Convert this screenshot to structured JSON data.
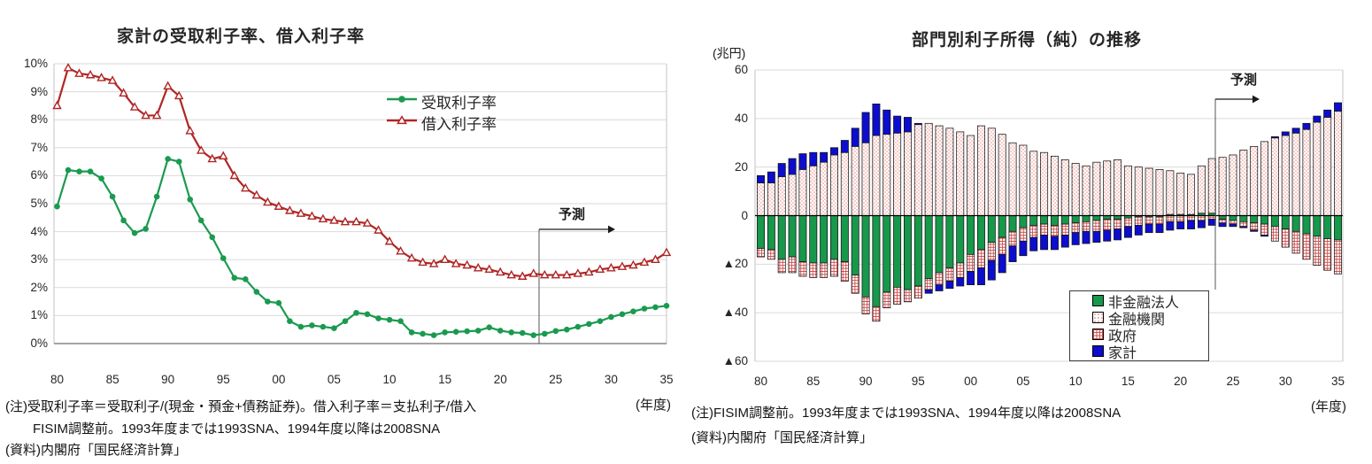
{
  "chart_data": [
    {
      "type": "line",
      "title": "家計の受取利子率、借入利子率",
      "x_start_year": 1980,
      "x_end_year": 2035,
      "x_tick_labels": [
        "80",
        "85",
        "90",
        "95",
        "00",
        "05",
        "10",
        "15",
        "20",
        "25",
        "30",
        "35"
      ],
      "y_tick_labels": [
        "10%",
        "9%",
        "8%",
        "7%",
        "6%",
        "5%",
        "4%",
        "3%",
        "2%",
        "1%",
        "0%"
      ],
      "ylim": [
        0,
        10
      ],
      "y_unit": "%",
      "x_unit": "(年度)",
      "grid": "horizontal",
      "legend_position": "inside-top-right",
      "forecast_label": "予測",
      "forecast_divider_between": [
        "23",
        "24"
      ],
      "series": [
        {
          "name": "受取利子率",
          "marker": "circle-filled",
          "color": "#1a9a4f",
          "values": [
            4.9,
            6.2,
            6.15,
            6.15,
            5.9,
            5.25,
            4.4,
            3.95,
            4.1,
            5.25,
            6.6,
            6.5,
            5.15,
            4.4,
            3.8,
            3.05,
            2.35,
            2.3,
            1.85,
            1.5,
            1.45,
            0.8,
            0.6,
            0.65,
            0.6,
            0.55,
            0.8,
            1.1,
            1.05,
            0.9,
            0.85,
            0.8,
            0.4,
            0.35,
            0.3,
            0.4,
            0.42,
            0.44,
            0.46,
            0.58,
            0.46,
            0.4,
            0.38,
            0.3,
            0.35,
            0.45,
            0.5,
            0.6,
            0.7,
            0.8,
            0.95,
            1.05,
            1.15,
            1.25,
            1.3,
            1.35
          ]
        },
        {
          "name": "借入利子率",
          "marker": "triangle-open",
          "color": "#b02525",
          "values": [
            8.5,
            9.85,
            9.65,
            9.6,
            9.5,
            9.4,
            8.95,
            8.45,
            8.15,
            8.15,
            9.2,
            8.85,
            7.6,
            6.9,
            6.6,
            6.7,
            6.0,
            5.55,
            5.3,
            5.05,
            4.9,
            4.75,
            4.65,
            4.55,
            4.45,
            4.4,
            4.35,
            4.35,
            4.3,
            4.05,
            3.65,
            3.3,
            3.05,
            2.9,
            2.85,
            3.0,
            2.85,
            2.8,
            2.7,
            2.65,
            2.55,
            2.45,
            2.4,
            2.5,
            2.45,
            2.45,
            2.45,
            2.5,
            2.55,
            2.65,
            2.7,
            2.75,
            2.8,
            2.9,
            3.0,
            3.25
          ]
        }
      ],
      "notes": [
        "(注)受取利子率＝受取利子/(現金・預金+債務証券)。借入利子率＝支払利子/借入",
        "FISIM調整前。1993年度までは1993SNA、1994年度以降は2008SNA",
        "(資料)内閣府「国民経済計算」"
      ]
    },
    {
      "type": "bar",
      "subtype": "stacked-signed",
      "title": "部門別利子所得（純）の推移",
      "ylabel": "(兆円)",
      "x_unit": "(年度)",
      "x_start_year": 1980,
      "x_end_year": 2035,
      "x_tick_labels": [
        "80",
        "85",
        "90",
        "95",
        "00",
        "05",
        "10",
        "15",
        "20",
        "25",
        "30",
        "35"
      ],
      "y_tick_labels": [
        "60",
        "40",
        "20",
        "0",
        "▲20",
        "▲40",
        "▲60"
      ],
      "y_tick_values": [
        60,
        40,
        20,
        0,
        -20,
        -40,
        -60
      ],
      "ylim": [
        -60,
        60
      ],
      "grid": "horizontal",
      "legend_position": "inside-bottom-right",
      "forecast_label": "予測",
      "forecast_divider_between": [
        "23",
        "24"
      ],
      "series": [
        {
          "name": "非金融法人",
          "fill_type": "solid",
          "color": "#17984a",
          "values": [
            -13.5,
            -14,
            -18,
            -17,
            -19,
            -19.5,
            -19.5,
            -18,
            -19,
            -24.5,
            -33.5,
            -37.5,
            -31.5,
            -29.5,
            -30.5,
            -29,
            -26,
            -23.5,
            -21.5,
            -19.5,
            -16,
            -14,
            -11,
            -9,
            -6.5,
            -5,
            -4,
            -3.5,
            -4,
            -3.5,
            -3,
            -2.5,
            -2,
            -1.5,
            -1.5,
            -1,
            -0.5,
            -0.5,
            -0.5,
            0.5,
            0.5,
            0.5,
            1,
            1,
            -1.5,
            -2,
            -2.5,
            -3,
            -3.5,
            -4.5,
            -5.5,
            -6.5,
            -7.5,
            -8.5,
            -9.5,
            -10
          ]
        },
        {
          "name": "金融機関",
          "fill_type": "dots",
          "color": "#e8837d",
          "values": [
            13.5,
            13.5,
            16,
            17,
            19,
            20.5,
            22,
            25,
            26,
            28.5,
            30,
            33,
            33.5,
            34,
            34.5,
            37.5,
            38,
            37,
            36,
            34.5,
            33,
            37,
            36,
            33.5,
            30,
            29,
            26.5,
            26,
            24.5,
            23,
            21.5,
            20.5,
            22,
            22.5,
            23,
            20.5,
            20,
            19.5,
            19,
            18,
            17,
            16.5,
            19.5,
            22.5,
            24,
            25,
            27,
            28.5,
            30.5,
            32,
            33,
            34,
            35.5,
            38.5,
            40.5,
            43
          ]
        },
        {
          "name": "政府",
          "fill_type": "grid",
          "color": "#cf4f4f",
          "values": [
            -3.5,
            -4,
            -5.5,
            -6.5,
            -6,
            -6,
            -6,
            -7,
            -8,
            -7.5,
            -7,
            -6,
            -6.5,
            -7,
            -5,
            -5,
            -4.5,
            -5,
            -5.5,
            -6,
            -7,
            -7.5,
            -7.5,
            -7,
            -6,
            -5.5,
            -5,
            -4.5,
            -4.5,
            -4.5,
            -4,
            -4,
            -4.5,
            -4.5,
            -4,
            -3.5,
            -3.5,
            -3,
            -3,
            -2.5,
            -2.5,
            -2,
            -2,
            -1.5,
            -1.5,
            -1.5,
            -2,
            -3,
            -4.5,
            -6,
            -7.5,
            -9,
            -10.5,
            -12,
            -13,
            -14
          ]
        },
        {
          "name": "家計",
          "fill_type": "solid",
          "color": "#0d0dcd",
          "values": [
            3,
            4.5,
            5.5,
            6.5,
            6.5,
            5.5,
            4,
            3,
            5,
            7.5,
            12.5,
            13,
            10,
            7,
            6,
            0.5,
            -1.5,
            -2.5,
            -3,
            -3.5,
            -5.5,
            -7,
            -8,
            -7.5,
            -6.5,
            -6,
            -5.5,
            -6,
            -5.5,
            -5,
            -5,
            -5,
            -4.5,
            -4.5,
            -4.5,
            -4.5,
            -4,
            -3.5,
            -3.5,
            -3.5,
            -3,
            -3.5,
            -3,
            -2.5,
            -1.5,
            -1,
            -0.5,
            -0.5,
            -0.5,
            0.5,
            1.5,
            2,
            2.5,
            2.5,
            3,
            3.5
          ]
        }
      ],
      "notes": [
        "(注)FISIM調整前。1993年度までは1993SNA、1994年度以降は2008SNA",
        "(資料)内閣府「国民経済計算」"
      ]
    }
  ]
}
